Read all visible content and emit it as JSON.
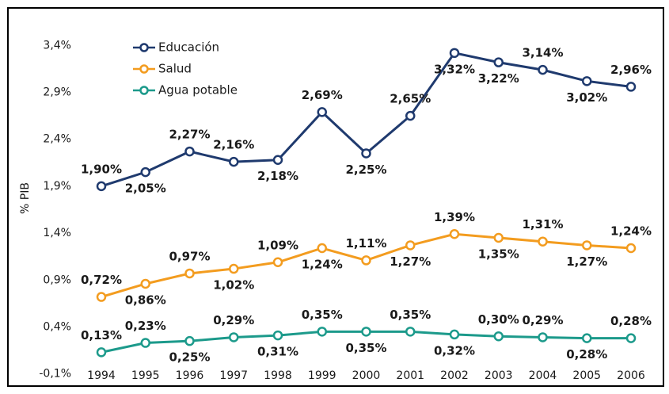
{
  "chart_data": {
    "type": "line",
    "y_label": "% PIB",
    "categories": [
      "1994",
      "1995",
      "1996",
      "1997",
      "1998",
      "1999",
      "2000",
      "2001",
      "2002",
      "2003",
      "2004",
      "2005",
      "2006"
    ],
    "ylim": [
      -0.23,
      3.8
    ],
    "yticks": [
      {
        "value": -0.1,
        "label": "-0,1%"
      },
      {
        "value": 0.4,
        "label": "0,4%"
      },
      {
        "value": 0.9,
        "label": "0,9%"
      },
      {
        "value": 1.4,
        "label": "1,4%"
      },
      {
        "value": 1.9,
        "label": "1,9%"
      },
      {
        "value": 2.4,
        "label": "2,4%"
      },
      {
        "value": 2.9,
        "label": "2,9%"
      },
      {
        "value": 3.4,
        "label": "3,4%"
      }
    ],
    "legend": "top-left",
    "series": [
      {
        "name": "Educación",
        "color": "#1f3a6e",
        "values": [
          1.9,
          2.05,
          2.27,
          2.16,
          2.18,
          2.69,
          2.25,
          2.65,
          3.32,
          3.22,
          3.14,
          3.02,
          2.96
        ],
        "value_labels": [
          "1,90%",
          "2,05%",
          "2,27%",
          "2,16%",
          "2,18%",
          "2,69%",
          "2,25%",
          "2,65%",
          "3,32%",
          "3,22%",
          "3,14%",
          "3,02%",
          "2,96%"
        ]
      },
      {
        "name": "Salud",
        "color": "#f39c1f",
        "values": [
          0.72,
          0.86,
          0.97,
          1.02,
          1.09,
          1.24,
          1.11,
          1.27,
          1.39,
          1.35,
          1.31,
          1.27,
          1.24
        ],
        "value_labels": [
          "0,72%",
          "0,86%",
          "0,97%",
          "1,02%",
          "1,09%",
          "1,24%",
          "1,11%",
          "1,27%",
          "1,39%",
          "1,35%",
          "1,31%",
          "1,27%",
          "1,24%"
        ]
      },
      {
        "name": "Agua potable",
        "color": "#1c9a8b",
        "values": [
          0.13,
          0.23,
          0.25,
          0.29,
          0.31,
          0.35,
          0.35,
          0.35,
          0.32,
          0.3,
          0.29,
          0.28,
          0.28
        ],
        "value_labels": [
          "0,13%",
          "0,23%",
          "0,25%",
          "0,29%",
          "0,31%",
          "0,35%",
          "0,35%",
          "0,35%",
          "0,32%",
          "0,30%",
          "0,29%",
          "0,28%",
          "0,28%"
        ]
      }
    ]
  }
}
